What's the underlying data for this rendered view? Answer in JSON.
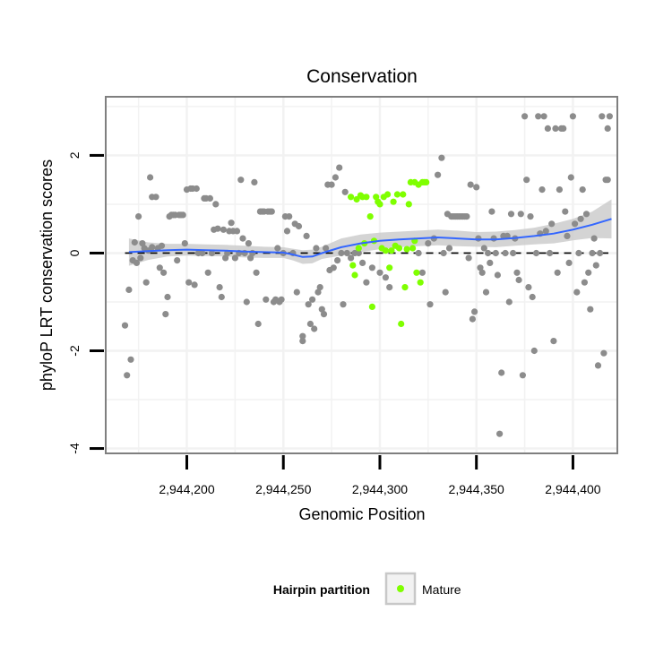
{
  "chart_data": {
    "type": "scatter",
    "title": "Conservation",
    "xlabel": "Genomic Position",
    "ylabel": "phyloP LRT conservation scores",
    "xlim": [
      2944158,
      2944423
    ],
    "ylim": [
      -4.1,
      3.2
    ],
    "x_ticks": [
      2944200,
      2944250,
      2944300,
      2944350,
      2944400
    ],
    "x_tick_labels": [
      "2,944,200",
      "2,944,250",
      "2,944,300",
      "2,944,350",
      "2,944,400"
    ],
    "y_ticks": [
      -4,
      -2,
      0,
      2
    ],
    "y_tick_labels": [
      "-4",
      "-2",
      "0",
      "2"
    ],
    "grid": true,
    "reference_line_y": 0,
    "legend": {
      "title": "Hairpin partition",
      "position": "bottom",
      "entries": [
        {
          "label": "Mature",
          "color": "#7fff00"
        }
      ]
    },
    "colors": {
      "other": "#8c8c8c",
      "mature": "#7fff00",
      "smooth": "#3366ff",
      "band": "#cccccc"
    },
    "series": [
      {
        "name": "Other",
        "points": [
          [
            2944168,
            -1.48
          ],
          [
            2944169,
            -2.5
          ],
          [
            2944170,
            -0.75
          ],
          [
            2944171,
            -2.18
          ],
          [
            2944172,
            -0.15
          ],
          [
            2944173,
            0.22
          ],
          [
            2944174,
            -0.2
          ],
          [
            2944175,
            0.75
          ],
          [
            2944176,
            -0.1
          ],
          [
            2944177,
            0.2
          ],
          [
            2944178,
            0.1
          ],
          [
            2944179,
            -0.6
          ],
          [
            2944180,
            0.05
          ],
          [
            2944181,
            1.55
          ],
          [
            2944182,
            0.12
          ],
          [
            2944182,
            1.15
          ],
          [
            2944184,
            1.15
          ],
          [
            2944185,
            0.1
          ],
          [
            2944186,
            -0.3
          ],
          [
            2944187,
            0.15
          ],
          [
            2944188,
            -0.4
          ],
          [
            2944189,
            -1.25
          ],
          [
            2944190,
            -0.9
          ],
          [
            2944191,
            0.75
          ],
          [
            2944192,
            0.78
          ],
          [
            2944193,
            0.78
          ],
          [
            2944194,
            0.78
          ],
          [
            2944195,
            -0.15
          ],
          [
            2944196,
            0.78
          ],
          [
            2944197,
            0.78
          ],
          [
            2944198,
            0.78
          ],
          [
            2944199,
            0.2
          ],
          [
            2944200,
            1.3
          ],
          [
            2944201,
            -0.6
          ],
          [
            2944202,
            1.32
          ],
          [
            2944203,
            1.32
          ],
          [
            2944204,
            -0.65
          ],
          [
            2944205,
            1.32
          ],
          [
            2944206,
            0.0
          ],
          [
            2944208,
            0.0
          ],
          [
            2944209,
            1.12
          ],
          [
            2944210,
            1.12
          ],
          [
            2944211,
            -0.4
          ],
          [
            2944212,
            1.12
          ],
          [
            2944213,
            0.0
          ],
          [
            2944214,
            0.48
          ],
          [
            2944215,
            1.0
          ],
          [
            2944216,
            0.5
          ],
          [
            2944217,
            -0.7
          ],
          [
            2944218,
            -0.9
          ],
          [
            2944219,
            0.48
          ],
          [
            2944220,
            -0.1
          ],
          [
            2944221,
            0.0
          ],
          [
            2944222,
            0.45
          ],
          [
            2944223,
            0.62
          ],
          [
            2944224,
            0.45
          ],
          [
            2944225,
            -0.1
          ],
          [
            2944226,
            0.45
          ],
          [
            2944227,
            0.0
          ],
          [
            2944228,
            1.5
          ],
          [
            2944229,
            0.3
          ],
          [
            2944230,
            0.0
          ],
          [
            2944231,
            -1.0
          ],
          [
            2944232,
            0.2
          ],
          [
            2944233,
            -0.1
          ],
          [
            2944234,
            0.0
          ],
          [
            2944235,
            1.45
          ],
          [
            2944236,
            -0.4
          ],
          [
            2944237,
            -1.45
          ],
          [
            2944238,
            0.85
          ],
          [
            2944239,
            0.85
          ],
          [
            2944240,
            0.85
          ],
          [
            2944241,
            -0.95
          ],
          [
            2944242,
            0.85
          ],
          [
            2944243,
            0.85
          ],
          [
            2944244,
            0.85
          ],
          [
            2944245,
            -1.0
          ],
          [
            2944246,
            -0.95
          ],
          [
            2944247,
            0.1
          ],
          [
            2944248,
            -1.0
          ],
          [
            2944249,
            -0.95
          ],
          [
            2944250,
            0.0
          ],
          [
            2944251,
            0.75
          ],
          [
            2944252,
            0.45
          ],
          [
            2944253,
            0.75
          ],
          [
            2944255,
            0.0
          ],
          [
            2944256,
            0.6
          ],
          [
            2944257,
            -0.8
          ],
          [
            2944258,
            0.55
          ],
          [
            2944260,
            -1.7
          ],
          [
            2944260,
            -1.8
          ],
          [
            2944262,
            0.35
          ],
          [
            2944263,
            -1.05
          ],
          [
            2944264,
            -1.45
          ],
          [
            2944265,
            -0.95
          ],
          [
            2944266,
            -1.55
          ],
          [
            2944267,
            0.1
          ],
          [
            2944268,
            -0.8
          ],
          [
            2944269,
            -0.7
          ],
          [
            2944270,
            -1.15
          ],
          [
            2944271,
            -1.25
          ],
          [
            2944272,
            0.1
          ],
          [
            2944273,
            1.4
          ],
          [
            2944274,
            -0.35
          ],
          [
            2944275,
            1.4
          ],
          [
            2944276,
            -0.3
          ],
          [
            2944277,
            1.55
          ],
          [
            2944278,
            -0.15
          ],
          [
            2944279,
            1.75
          ],
          [
            2944280,
            0.0
          ],
          [
            2944281,
            -1.05
          ],
          [
            2944282,
            1.25
          ],
          [
            2944283,
            0.0
          ],
          [
            2944285,
            -0.1
          ],
          [
            2944287,
            0.0
          ],
          [
            2944289,
            0.0
          ],
          [
            2944291,
            -0.2
          ],
          [
            2944293,
            -0.6
          ],
          [
            2944296,
            -0.3
          ],
          [
            2944300,
            -0.4
          ],
          [
            2944303,
            -0.5
          ],
          [
            2944305,
            -0.7
          ],
          [
            2944320,
            0.0
          ],
          [
            2944322,
            -0.4
          ],
          [
            2944325,
            0.2
          ],
          [
            2944326,
            -1.05
          ],
          [
            2944328,
            0.3
          ],
          [
            2944330,
            1.6
          ],
          [
            2944332,
            1.95
          ],
          [
            2944333,
            0.0
          ],
          [
            2944334,
            -0.8
          ],
          [
            2944335,
            0.8
          ],
          [
            2944336,
            0.1
          ],
          [
            2944337,
            0.75
          ],
          [
            2944338,
            0.75
          ],
          [
            2944339,
            0.75
          ],
          [
            2944340,
            0.75
          ],
          [
            2944341,
            0.75
          ],
          [
            2944342,
            0.75
          ],
          [
            2944343,
            0.75
          ],
          [
            2944344,
            0.75
          ],
          [
            2944345,
            0.75
          ],
          [
            2944346,
            -0.1
          ],
          [
            2944347,
            1.4
          ],
          [
            2944348,
            -1.35
          ],
          [
            2944349,
            -1.2
          ],
          [
            2944350,
            1.35
          ],
          [
            2944351,
            0.3
          ],
          [
            2944352,
            -0.3
          ],
          [
            2944353,
            -0.4
          ],
          [
            2944354,
            0.1
          ],
          [
            2944355,
            -0.8
          ],
          [
            2944356,
            0.0
          ],
          [
            2944357,
            -0.2
          ],
          [
            2944358,
            0.85
          ],
          [
            2944359,
            0.3
          ],
          [
            2944360,
            0.0
          ],
          [
            2944361,
            -0.45
          ],
          [
            2944362,
            -3.7
          ],
          [
            2944363,
            -2.45
          ],
          [
            2944364,
            0.35
          ],
          [
            2944365,
            0.0
          ],
          [
            2944366,
            0.35
          ],
          [
            2944367,
            -1.0
          ],
          [
            2944368,
            0.8
          ],
          [
            2944369,
            0.0
          ],
          [
            2944370,
            0.3
          ],
          [
            2944371,
            -0.4
          ],
          [
            2944372,
            -0.55
          ],
          [
            2944373,
            0.8
          ],
          [
            2944374,
            -2.5
          ],
          [
            2944375,
            2.8
          ],
          [
            2944376,
            1.5
          ],
          [
            2944377,
            -0.7
          ],
          [
            2944378,
            0.75
          ],
          [
            2944379,
            -0.9
          ],
          [
            2944380,
            -2.0
          ],
          [
            2944381,
            0.0
          ],
          [
            2944382,
            2.8
          ],
          [
            2944383,
            0.4
          ],
          [
            2944384,
            1.3
          ],
          [
            2944385,
            2.8
          ],
          [
            2944386,
            0.45
          ],
          [
            2944387,
            2.55
          ],
          [
            2944388,
            0.0
          ],
          [
            2944389,
            0.6
          ],
          [
            2944390,
            -1.8
          ],
          [
            2944391,
            2.55
          ],
          [
            2944392,
            -0.4
          ],
          [
            2944393,
            1.3
          ],
          [
            2944394,
            2.55
          ],
          [
            2944395,
            2.55
          ],
          [
            2944396,
            0.85
          ],
          [
            2944397,
            0.35
          ],
          [
            2944398,
            -0.2
          ],
          [
            2944399,
            1.55
          ],
          [
            2944400,
            2.8
          ],
          [
            2944401,
            0.6
          ],
          [
            2944402,
            -0.8
          ],
          [
            2944403,
            0.0
          ],
          [
            2944404,
            0.7
          ],
          [
            2944405,
            1.3
          ],
          [
            2944406,
            -0.6
          ],
          [
            2944407,
            0.8
          ],
          [
            2944408,
            -0.4
          ],
          [
            2944409,
            -1.15
          ],
          [
            2944410,
            0.0
          ],
          [
            2944411,
            0.3
          ],
          [
            2944412,
            -0.25
          ],
          [
            2944413,
            -2.3
          ],
          [
            2944414,
            0.0
          ],
          [
            2944415,
            2.8
          ],
          [
            2944416,
            -2.05
          ],
          [
            2944417,
            1.5
          ],
          [
            2944418,
            2.55
          ],
          [
            2944419,
            2.8
          ],
          [
            2944418,
            1.5
          ]
        ]
      },
      {
        "name": "Mature",
        "points": [
          [
            2944285,
            1.15
          ],
          [
            2944286,
            -0.25
          ],
          [
            2944287,
            -0.45
          ],
          [
            2944288,
            1.1
          ],
          [
            2944289,
            0.1
          ],
          [
            2944290,
            1.18
          ],
          [
            2944291,
            1.15
          ],
          [
            2944292,
            0.2
          ],
          [
            2944293,
            1.15
          ],
          [
            2944295,
            0.75
          ],
          [
            2944296,
            -1.1
          ],
          [
            2944297,
            0.25
          ],
          [
            2944298,
            1.15
          ],
          [
            2944299,
            1.05
          ],
          [
            2944300,
            1.0
          ],
          [
            2944301,
            0.1
          ],
          [
            2944302,
            1.15
          ],
          [
            2944303,
            0.05
          ],
          [
            2944304,
            1.2
          ],
          [
            2944305,
            -0.3
          ],
          [
            2944306,
            0.05
          ],
          [
            2944307,
            1.05
          ],
          [
            2944308,
            0.15
          ],
          [
            2944309,
            1.2
          ],
          [
            2944310,
            0.1
          ],
          [
            2944311,
            -1.45
          ],
          [
            2944312,
            1.2
          ],
          [
            2944313,
            -0.7
          ],
          [
            2944314,
            0.08
          ],
          [
            2944315,
            1.0
          ],
          [
            2944316,
            1.45
          ],
          [
            2944317,
            0.1
          ],
          [
            2944318,
            1.45
          ],
          [
            2944319,
            -0.4
          ],
          [
            2944320,
            1.4
          ],
          [
            2944321,
            -0.6
          ],
          [
            2944322,
            1.45
          ],
          [
            2944323,
            1.45
          ],
          [
            2944324,
            1.45
          ],
          [
            2944318,
            0.25
          ]
        ]
      }
    ],
    "smooth": {
      "x": [
        2944170,
        2944180,
        2944190,
        2944200,
        2944210,
        2944220,
        2944230,
        2944240,
        2944250,
        2944255,
        2944260,
        2944265,
        2944270,
        2944280,
        2944290,
        2944300,
        2944310,
        2944320,
        2944330,
        2944340,
        2944350,
        2944360,
        2944370,
        2944380,
        2944390,
        2944400,
        2944410,
        2944420
      ],
      "y": [
        0.02,
        0.04,
        0.06,
        0.07,
        0.06,
        0.05,
        0.03,
        0.02,
        0.01,
        -0.03,
        -0.08,
        -0.07,
        0.0,
        0.12,
        0.2,
        0.25,
        0.28,
        0.3,
        0.32,
        0.3,
        0.28,
        0.28,
        0.31,
        0.35,
        0.4,
        0.48,
        0.58,
        0.7
      ],
      "band_upper": [
        0.3,
        0.22,
        0.19,
        0.19,
        0.18,
        0.17,
        0.15,
        0.13,
        0.12,
        0.09,
        0.06,
        0.07,
        0.13,
        0.3,
        0.38,
        0.42,
        0.44,
        0.46,
        0.48,
        0.46,
        0.43,
        0.44,
        0.47,
        0.52,
        0.6,
        0.7,
        0.85,
        1.1
      ],
      "band_lower": [
        -0.26,
        -0.14,
        -0.07,
        -0.05,
        -0.06,
        -0.07,
        -0.09,
        -0.1,
        -0.1,
        -0.15,
        -0.22,
        -0.21,
        -0.12,
        -0.05,
        0.02,
        0.08,
        0.12,
        0.14,
        0.16,
        0.14,
        0.13,
        0.12,
        0.15,
        0.18,
        0.2,
        0.26,
        0.31,
        0.3
      ]
    }
  }
}
